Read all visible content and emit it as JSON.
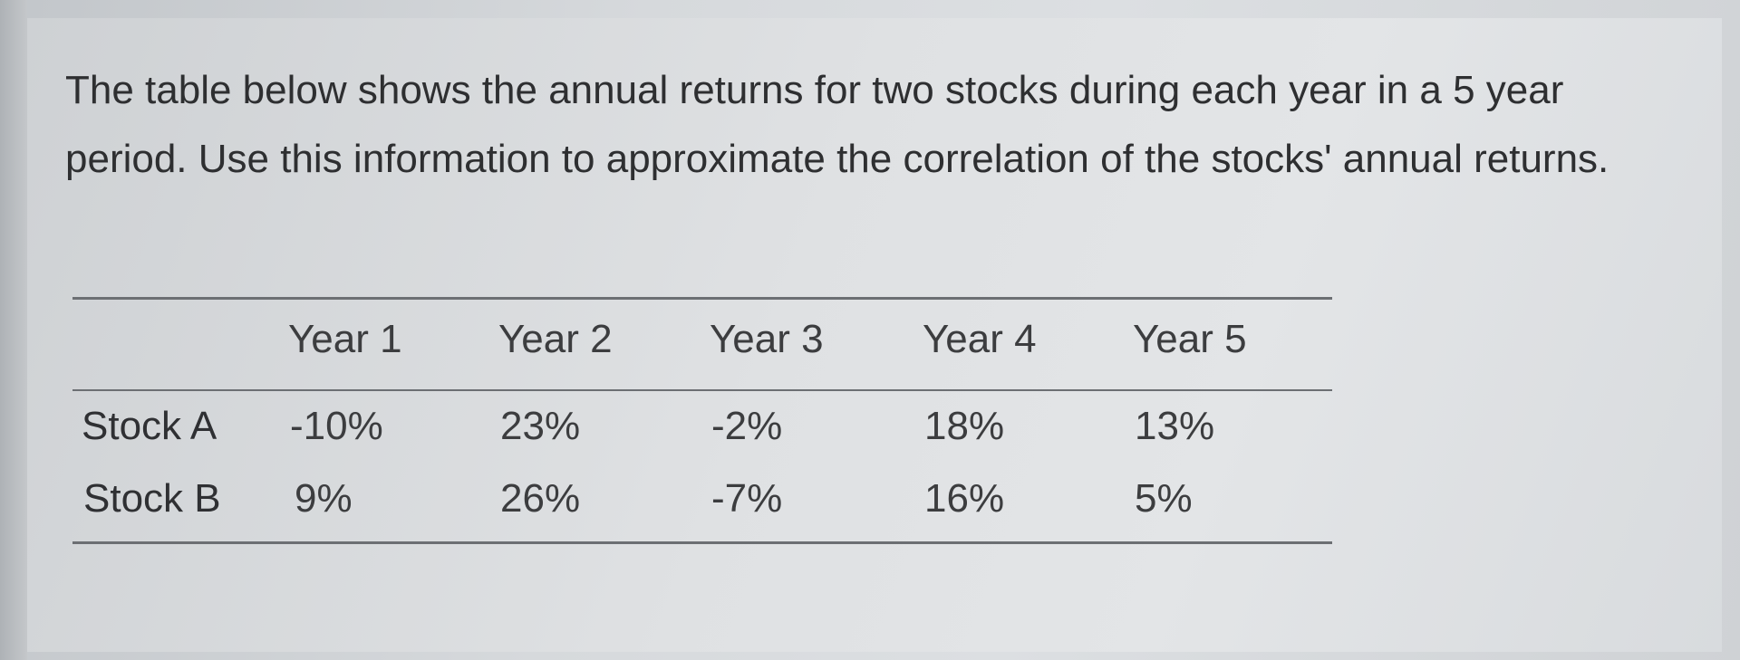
{
  "question": {
    "text": "The table below shows the annual returns for two stocks during each year in a 5 year period. Use this information to approximate the correlation of the stocks' annual returns."
  },
  "table": {
    "columns": [
      "Year 1",
      "Year 2",
      "Year 3",
      "Year 4",
      "Year 5"
    ],
    "rows": [
      {
        "label": "Stock A",
        "values": [
          "-10%",
          "23%",
          "-2%",
          "18%",
          "13%"
        ]
      },
      {
        "label": "Stock B",
        "values": [
          "9%",
          "26%",
          "-7%",
          "16%",
          "5%"
        ]
      }
    ]
  }
}
